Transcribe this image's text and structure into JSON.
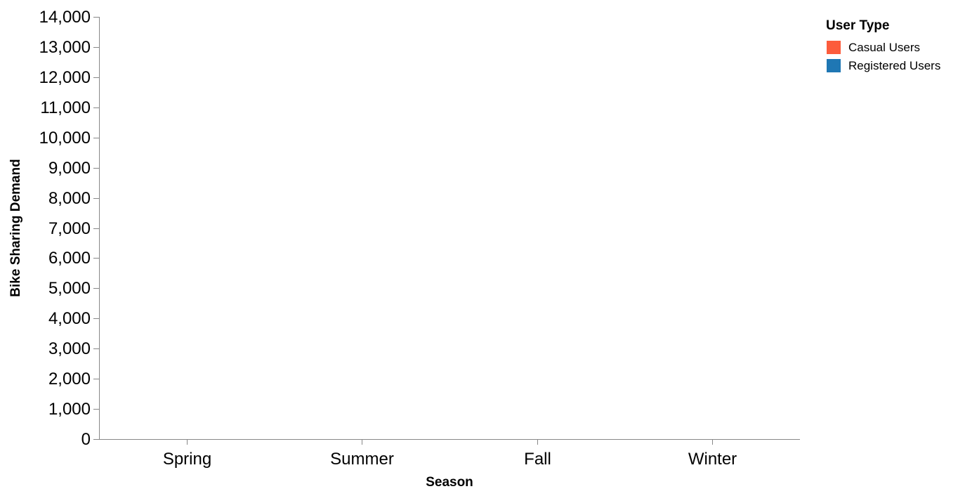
{
  "chart_data": {
    "type": "bar",
    "categories": [
      "Spring",
      "Summer",
      "Fall",
      "Winter"
    ],
    "series": [
      {
        "name": "Casual Users",
        "values": [
          0,
          0,
          0,
          0
        ],
        "color": "#fc5c3c"
      },
      {
        "name": "Registered Users",
        "values": [
          0,
          0,
          0,
          0
        ],
        "color": "#1f77b4"
      }
    ],
    "xlabel": "Season",
    "ylabel": "Bike Sharing Demand",
    "ylim": [
      0,
      14000
    ],
    "yticks": [
      0,
      1000,
      2000,
      3000,
      4000,
      5000,
      6000,
      7000,
      8000,
      9000,
      10000,
      11000,
      12000,
      13000,
      14000
    ],
    "ytick_labels": [
      "0",
      "1,000",
      "2,000",
      "3,000",
      "4,000",
      "5,000",
      "6,000",
      "7,000",
      "8,000",
      "9,000",
      "10,000",
      "11,000",
      "12,000",
      "13,000",
      "14,000"
    ],
    "grid": false,
    "legend": {
      "title": "User Type",
      "placement": "top-right",
      "entries": [
        "Casual Users",
        "Registered Users"
      ]
    }
  }
}
